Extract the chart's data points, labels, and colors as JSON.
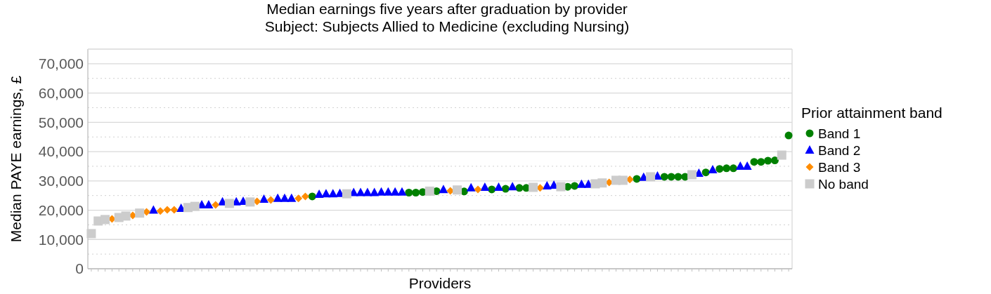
{
  "chart_data": {
    "type": "scatter",
    "title": "Median earnings five years after graduation by provider",
    "subtitle": "Subject: Subjects Allied to Medicine (excluding Nursing)",
    "xlabel": "Providers",
    "ylabel": "Median PAYE earnings, £",
    "legend_title": "Prior attainment band",
    "legend": "right",
    "grid": "y",
    "ylim": [
      0,
      75000
    ],
    "yticks": [
      0,
      {
        "value": 5000,
        "label": null
      },
      {
        "value": 10000,
        "label": "10,000"
      },
      {
        "value": 15000,
        "label": null
      },
      {
        "value": 20000,
        "label": "20,000"
      },
      {
        "value": 25000,
        "label": null
      },
      {
        "value": 30000,
        "label": "30,000"
      },
      {
        "value": 35000,
        "label": null
      },
      {
        "value": 40000,
        "label": "40,000"
      },
      {
        "value": 45000,
        "label": null
      },
      {
        "value": 50000,
        "label": "50,000"
      },
      {
        "value": 55000,
        "label": null
      },
      {
        "value": 60000,
        "label": "60,000"
      },
      {
        "value": 65000,
        "label": null
      },
      {
        "value": 70000,
        "label": "70,000"
      }
    ],
    "categories": [
      null,
      null,
      null,
      null,
      null,
      null,
      null,
      null,
      null,
      null,
      null,
      null,
      null,
      null,
      null,
      null,
      null,
      null,
      null,
      null,
      null,
      null,
      null,
      null,
      null,
      null,
      null,
      null,
      null,
      null,
      null,
      null,
      null,
      null,
      null,
      null,
      null,
      null,
      null,
      null,
      null,
      null,
      null,
      null,
      null,
      null,
      null,
      null,
      null,
      null,
      null,
      null,
      null,
      null,
      null,
      null,
      null,
      null,
      null,
      null,
      null,
      null,
      null,
      null,
      null,
      null,
      null,
      null,
      null,
      null,
      null,
      null,
      null,
      null,
      null,
      null,
      null,
      null,
      null,
      null,
      null,
      null,
      null,
      null,
      null,
      null,
      null,
      null,
      null,
      null,
      null,
      null,
      null,
      null,
      null,
      null,
      null,
      null,
      null,
      null,
      null,
      null
    ],
    "series": [
      {
        "name": "Band 1",
        "color": "#008000",
        "marker": "circle",
        "values": [
          null,
          null,
          null,
          null,
          null,
          null,
          null,
          null,
          null,
          null,
          null,
          null,
          null,
          null,
          null,
          null,
          null,
          null,
          null,
          null,
          null,
          null,
          null,
          null,
          null,
          null,
          null,
          null,
          null,
          null,
          null,
          null,
          24700,
          null,
          null,
          null,
          null,
          null,
          null,
          null,
          null,
          null,
          null,
          null,
          null,
          null,
          26000,
          26000,
          26200,
          null,
          26500,
          null,
          null,
          null,
          26400,
          null,
          null,
          null,
          27100,
          null,
          27300,
          null,
          27600,
          27600,
          null,
          null,
          null,
          null,
          null,
          28000,
          28300,
          null,
          null,
          null,
          null,
          null,
          null,
          null,
          null,
          30700,
          null,
          null,
          null,
          31400,
          31400,
          31400,
          31400,
          null,
          null,
          32900,
          null,
          34100,
          34300,
          34300,
          null,
          null,
          36500,
          36500,
          36900,
          37000,
          null,
          45500
        ]
      },
      {
        "name": "Band 2",
        "color": "#0000ff",
        "marker": "triangle",
        "values": [
          null,
          null,
          null,
          null,
          null,
          null,
          null,
          null,
          null,
          20000,
          null,
          null,
          null,
          20600,
          null,
          null,
          21800,
          21800,
          null,
          22800,
          null,
          22800,
          23000,
          null,
          null,
          23700,
          null,
          24000,
          24000,
          24000,
          null,
          null,
          null,
          25400,
          25600,
          25600,
          25700,
          null,
          26000,
          26000,
          26000,
          26000,
          26200,
          26200,
          26200,
          26200,
          null,
          null,
          null,
          null,
          null,
          27000,
          null,
          null,
          null,
          27600,
          null,
          27800,
          null,
          27800,
          null,
          28000,
          null,
          null,
          null,
          null,
          28300,
          28500,
          null,
          null,
          null,
          28800,
          28800,
          null,
          null,
          null,
          null,
          null,
          null,
          null,
          31200,
          null,
          31600,
          null,
          null,
          null,
          null,
          null,
          32600,
          null,
          33800,
          null,
          null,
          null,
          35000,
          35000,
          null,
          null,
          null,
          null,
          null,
          null
        ]
      },
      {
        "name": "Band 3",
        "color": "#ff8c00",
        "marker": "diamond",
        "values": [
          null,
          null,
          null,
          17000,
          null,
          null,
          18200,
          null,
          19400,
          null,
          19700,
          20100,
          20100,
          null,
          null,
          null,
          null,
          null,
          21800,
          null,
          null,
          null,
          null,
          null,
          23000,
          null,
          23500,
          null,
          null,
          null,
          24000,
          24700,
          null,
          null,
          null,
          null,
          null,
          null,
          null,
          null,
          null,
          null,
          null,
          null,
          null,
          null,
          null,
          null,
          null,
          null,
          null,
          null,
          26600,
          null,
          null,
          null,
          27100,
          null,
          null,
          null,
          null,
          null,
          null,
          null,
          null,
          27600,
          null,
          null,
          null,
          null,
          null,
          null,
          null,
          null,
          null,
          29500,
          null,
          null,
          30500,
          null,
          null,
          null,
          null,
          null,
          null,
          null,
          null,
          null,
          null,
          null,
          null,
          null,
          null,
          null,
          null,
          null,
          null,
          null,
          null,
          null,
          null,
          null
        ]
      },
      {
        "name": "No band",
        "color": "#cccccc",
        "marker": "square",
        "values": [
          12000,
          16300,
          16800,
          null,
          17500,
          18000,
          null,
          19000,
          null,
          null,
          null,
          null,
          null,
          null,
          20900,
          21300,
          null,
          null,
          null,
          null,
          22300,
          null,
          null,
          22800,
          null,
          null,
          null,
          null,
          null,
          null,
          null,
          null,
          null,
          null,
          null,
          null,
          null,
          25600,
          null,
          null,
          null,
          null,
          null,
          null,
          null,
          null,
          null,
          null,
          null,
          26500,
          null,
          null,
          null,
          26900,
          null,
          null,
          null,
          null,
          null,
          null,
          null,
          null,
          null,
          null,
          27800,
          null,
          null,
          null,
          28000,
          null,
          null,
          null,
          null,
          29000,
          29300,
          null,
          30200,
          30200,
          null,
          null,
          null,
          31400,
          null,
          null,
          null,
          null,
          null,
          32100,
          null,
          null,
          null,
          null,
          null,
          null,
          null,
          null,
          null,
          null,
          null,
          null,
          38800,
          null
        ]
      }
    ]
  }
}
